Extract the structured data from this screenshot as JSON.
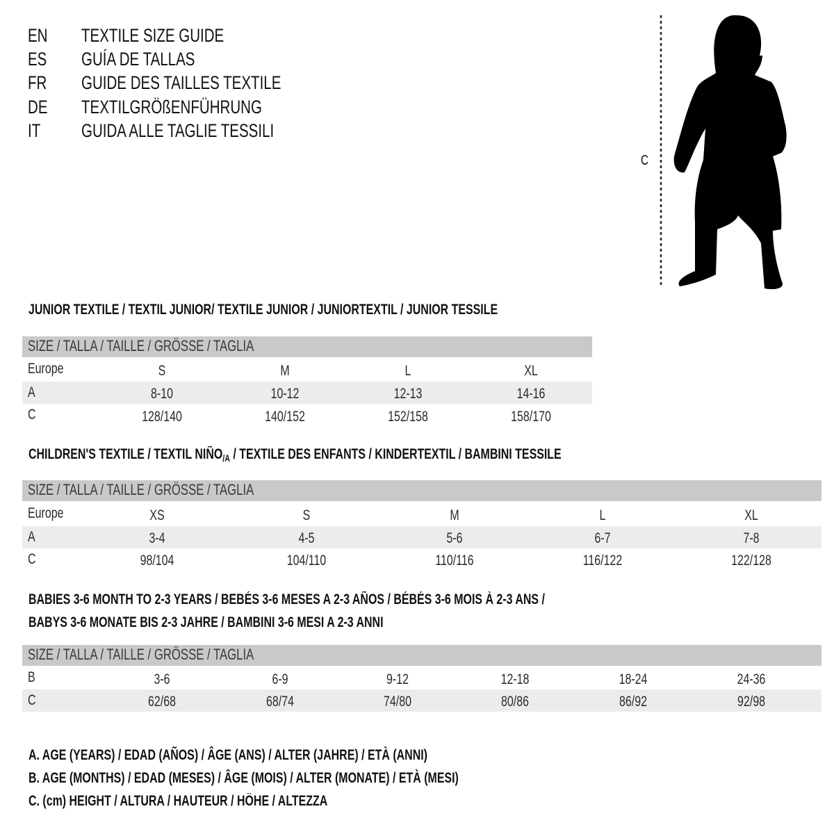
{
  "header": [
    {
      "code": "EN",
      "text": "TEXTILE SIZE GUIDE"
    },
    {
      "code": "ES",
      "text": "GUÍA DE TALLAS"
    },
    {
      "code": "FR",
      "text": "GUIDE DES TAILLES TEXTILE"
    },
    {
      "code": "DE",
      "text": "TEXTILGRÖßENFÜHRUNG"
    },
    {
      "code": "IT",
      "text": "GUIDA ALLE TAGLIE TESSILI"
    }
  ],
  "figure": {
    "label": "C",
    "icon": "child-silhouette-icon"
  },
  "junior": {
    "title": "JUNIOR TEXTILE / TEXTIL JUNIOR/ TEXTILE JUNIOR / JUNIORTEXTIL / JUNIOR TESSILE",
    "size_header": "SIZE / TALLA / TAILLE / GRÖSSE / TAGLIA",
    "rows": [
      {
        "label": "Europe",
        "values": [
          "S",
          "M",
          "L",
          "XL"
        ]
      },
      {
        "label": "A",
        "values": [
          "8-10",
          "10-12",
          "12-13",
          "14-16"
        ]
      },
      {
        "label": "C",
        "values": [
          "128/140",
          "140/152",
          "152/158",
          "158/170"
        ]
      }
    ]
  },
  "children": {
    "title_pre": "CHILDREN'S TEXTILE / TEXTIL NIÑO",
    "title_sub": "/A",
    "title_post": " / TEXTILE DES ENFANTS / KINDERTEXTIL / BAMBINI TESSILE",
    "size_header": "SIZE / TALLA / TAILLE / GRÖSSE / TAGLIA",
    "rows": [
      {
        "label": "Europe",
        "values": [
          "XS",
          "S",
          "M",
          "L",
          "XL"
        ]
      },
      {
        "label": "A",
        "values": [
          "3-4",
          "4-5",
          "5-6",
          "6-7",
          "7-8"
        ]
      },
      {
        "label": "C",
        "values": [
          "98/104",
          "104/110",
          "110/116",
          "116/122",
          "122/128"
        ]
      }
    ]
  },
  "babies": {
    "title_line1": "BABIES 3-6 MONTH TO 2-3 YEARS / BEBÉS 3-6 MESES A 2-3 AÑOS / BÉBÉS 3-6 MOIS À 2-3 ANS /",
    "title_line2": "BABYS 3-6 MONATE BIS 2-3 JAHRE / BAMBINI 3-6 MESI A 2-3 ANNI",
    "size_header": "SIZE / TALLA / TAILLE / GRÖSSE / TAGLIA",
    "rows": [
      {
        "label": "B",
        "values": [
          "3-6",
          "6-9",
          "9-12",
          "12-18",
          "18-24",
          "24-36"
        ]
      },
      {
        "label": "C",
        "values": [
          "62/68",
          "68/74",
          "74/80",
          "80/86",
          "86/92",
          "92/98"
        ]
      }
    ]
  },
  "legend": [
    "A. AGE (YEARS) / EDAD (AÑOS) / ÂGE (ANS) / ALTER (JAHRE) / ETÀ (ANNI)",
    "B. AGE (MONTHS) / EDAD (MESES) / ÂGE (MOIS) / ALTER (MONATE) / ETÀ (MESI)",
    "C. (cm) HEIGHT / ALTURA / HAUTEUR / HÖHE / ALTEZZA"
  ]
}
